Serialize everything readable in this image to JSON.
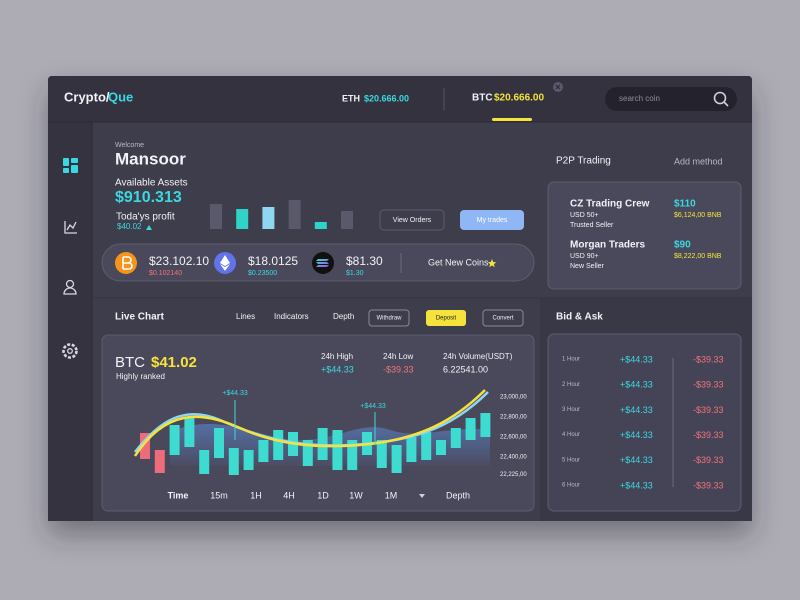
{
  "header": {
    "logo_a": "Crypto/",
    "logo_b": "Que",
    "tickers": [
      {
        "symbol": "ETH",
        "price": "$20.666.00"
      },
      {
        "symbol": "BTC",
        "price": "$20.666.00"
      }
    ],
    "search_placeholder": "search coin"
  },
  "welcome": {
    "greeting": "Welcome",
    "name": "Mansoor",
    "assets_label": "Available Assets",
    "assets_value": "$910.313",
    "profit_label": "Toda'ys profit",
    "profit_value": "$40.02"
  },
  "asset_bars": {
    "values": [
      25,
      20,
      22,
      29,
      7,
      18
    ],
    "colors": [
      "#5a596b",
      "#2fd3c8",
      "#8fd6f0",
      "#5a596b",
      "#2fd3c8",
      "#5a596b"
    ]
  },
  "buttons": {
    "view_orders": "View Orders",
    "my_trades": "My trades"
  },
  "coins": [
    {
      "price": "$23.102.10",
      "change": "$0.102140"
    },
    {
      "price": "$18.0125",
      "change": "$0.23500"
    },
    {
      "price": "$81.30",
      "change": "$1.30"
    }
  ],
  "get_new_coins": "Get New Coins",
  "p2p": {
    "title": "P2P Trading",
    "action": "Add method",
    "traders": [
      {
        "name": "CZ Trading Crew",
        "price": "$110",
        "volume": "USD 50+",
        "bnb": "$6,124,00 BNB",
        "tag": "Trusted Seller"
      },
      {
        "name": "Morgan Traders",
        "price": "$90",
        "volume": "USD 90+",
        "bnb": "$8,222,00 BNB",
        "tag": "New Seller"
      }
    ]
  },
  "live_chart": {
    "title": "Live Chart",
    "tabs": [
      "Lines",
      "Indicators",
      "Depth"
    ],
    "actions": [
      "Withdraw",
      "Deposit",
      "Convert"
    ],
    "symbol": "BTC",
    "price": "$41.02",
    "subtitle": "Highly ranked",
    "stats": [
      {
        "label": "24h High",
        "value": "+$44.33"
      },
      {
        "label": "24h Low",
        "value": "-$39.33"
      },
      {
        "label": "24h Volume(USDT)",
        "value": "6.22541.00"
      }
    ],
    "annotations": [
      "+$44.33",
      "+$44.33"
    ],
    "chart": {
      "type": "candlestick",
      "up_color": "#3ddbd0",
      "down_color": "#ee6c7a",
      "ylim": [
        22150,
        23100
      ],
      "yticks": [
        {
          "value": 23000,
          "label": "23,000,00"
        },
        {
          "value": 22800,
          "label": "22,800,00"
        },
        {
          "value": 22600,
          "label": "22,600,00"
        },
        {
          "value": 22400,
          "label": "22,400,00"
        },
        {
          "value": 22225,
          "label": "22,225,00"
        }
      ],
      "open": [
        22640,
        22470,
        22420,
        22500,
        22230,
        22390,
        22220,
        22270,
        22350,
        22370,
        22410,
        22310,
        22370,
        22270,
        22270,
        22420,
        22290,
        22240,
        22350,
        22370,
        22420,
        22490,
        22570,
        22600
      ],
      "close": [
        22380,
        22240,
        22720,
        22790,
        22470,
        22690,
        22490,
        22470,
        22570,
        22670,
        22650,
        22570,
        22690,
        22670,
        22570,
        22650,
        22570,
        22520,
        22600,
        22650,
        22570,
        22690,
        22790,
        22840
      ]
    },
    "timeframes": [
      "Time",
      "15m",
      "1H",
      "4H",
      "1D",
      "1W",
      "1M"
    ],
    "depth": "Depth"
  },
  "bid_ask": {
    "title": "Bid & Ask",
    "rows": [
      {
        "label": "1 Hour",
        "bid": "+$44.33",
        "ask": "-$39.33"
      },
      {
        "label": "2 Hour",
        "bid": "+$44.33",
        "ask": "-$39.33"
      },
      {
        "label": "3 Hour",
        "bid": "+$44.33",
        "ask": "-$39.33"
      },
      {
        "label": "4 Hour",
        "bid": "+$44.33",
        "ask": "-$39.33"
      },
      {
        "label": "5 Hour",
        "bid": "+$44.33",
        "ask": "-$39.33"
      },
      {
        "label": "6 Hour",
        "bid": "+$44.33",
        "ask": "-$39.33"
      }
    ]
  }
}
